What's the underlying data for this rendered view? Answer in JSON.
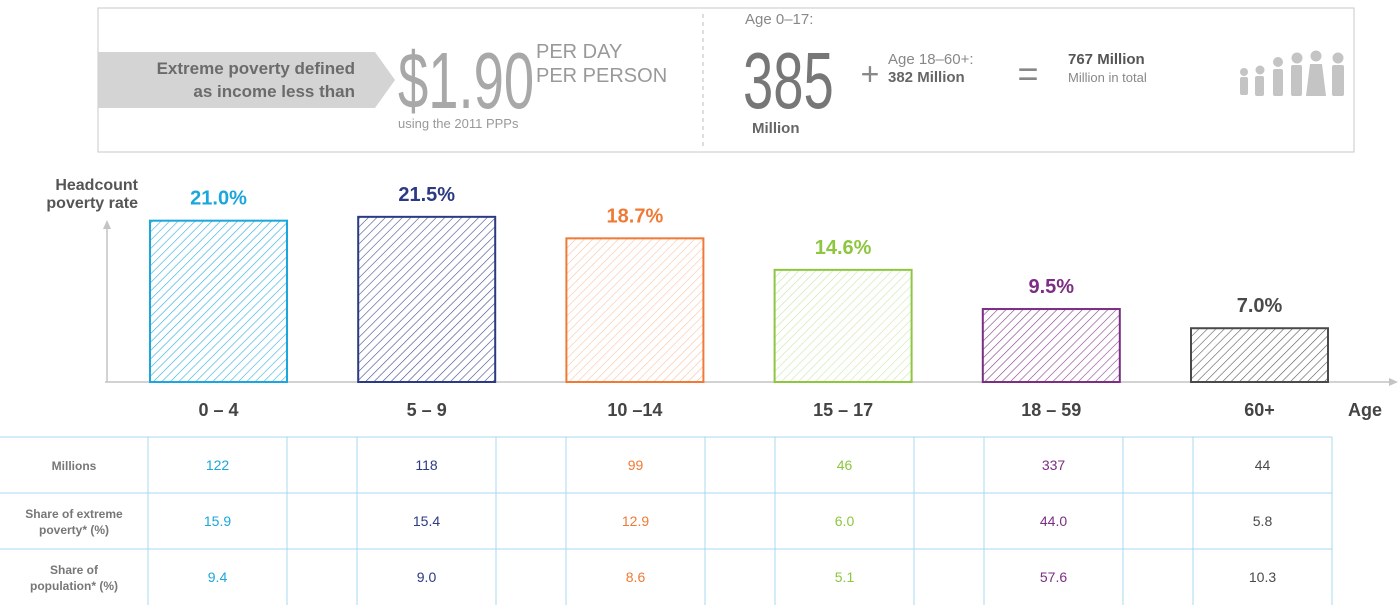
{
  "header": {
    "definition": [
      "Extreme poverty defined",
      "as income less than"
    ],
    "amount": "$1.90",
    "unit": [
      "PER DAY",
      "PER PERSON"
    ],
    "note": "using the 2011 PPPs",
    "children": {
      "label": "Age 0–17:",
      "value": "385",
      "unit": "Million"
    },
    "plus": "+",
    "adults": {
      "label": "Age 18–60+:",
      "value": "382 Million"
    },
    "equals": "=",
    "total": {
      "value": "767 Million",
      "label": "Million in total"
    }
  },
  "chart_data": {
    "type": "bar",
    "y_label": [
      "Headcount",
      "poverty rate"
    ],
    "x_label": "Age",
    "categories": [
      "0 – 4",
      "5 – 9",
      "10 –14",
      "15 – 17",
      "18 – 59",
      "60+"
    ],
    "values": [
      21.0,
      21.5,
      18.7,
      14.6,
      9.5,
      7.0
    ],
    "value_labels": [
      "21.0%",
      "21.5%",
      "18.7%",
      "14.6%",
      "9.5%",
      "7.0%"
    ],
    "colors": [
      "#1ba6dc",
      "#2b3a82",
      "#f07a35",
      "#8dc63f",
      "#7b2e83",
      "#4a4a4a"
    ],
    "ylim": [
      0,
      22
    ]
  },
  "table": {
    "row_labels": [
      [
        "Millions"
      ],
      [
        "Share of extreme",
        "poverty* (%)"
      ],
      [
        "Share of",
        "population* (%)"
      ]
    ],
    "rows": [
      [
        "122",
        "118",
        "99",
        "46",
        "337",
        "44"
      ],
      [
        "15.9",
        "15.4",
        "12.9",
        "6.0",
        "44.0",
        "5.8"
      ],
      [
        "9.4",
        "9.0",
        "8.6",
        "5.1",
        "57.6",
        "10.3"
      ]
    ]
  }
}
